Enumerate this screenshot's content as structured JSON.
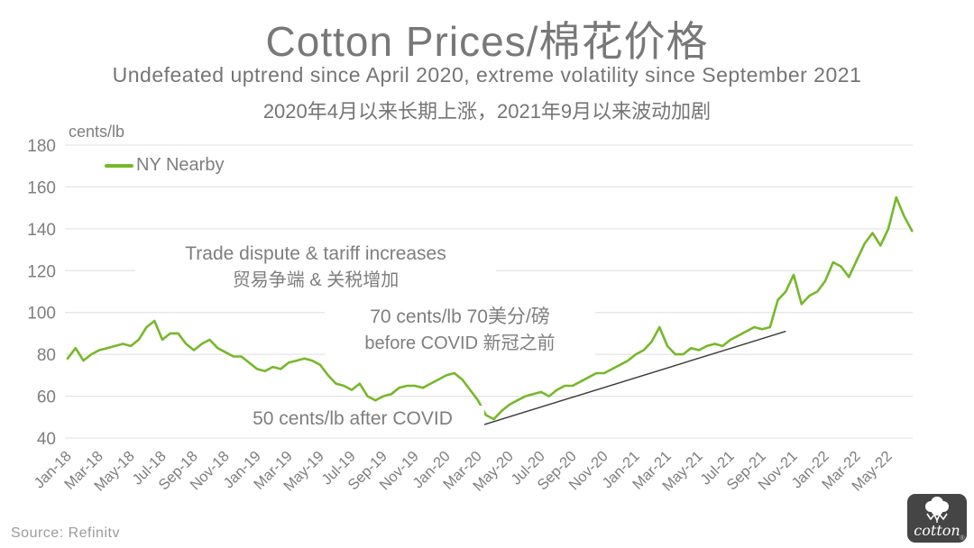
{
  "title": "Cotton Prices/棉花价格",
  "subtitle_en": "Undefeated uptrend since April 2020, extreme volatility since September 2021",
  "subtitle_cn": "2020年4月以来长期上涨，2021年9月以来波动加剧",
  "source": "Source: Refinitv",
  "logo": {
    "brand": "cotton",
    "registered": "®",
    "bg_color": "#454545"
  },
  "colors": {
    "accent_green": "#76b82a",
    "text_gray": "#7e7e7e",
    "grid_gray": "#e6e6e6"
  },
  "chart_data": {
    "type": "line",
    "title": "Cotton Prices/棉花价格",
    "ylabel": "cents/lb",
    "ylim": [
      40,
      180
    ],
    "yticks": [
      180,
      160,
      140,
      120,
      100,
      80,
      60,
      40
    ],
    "grid": true,
    "grid_color": "#e6e6e6",
    "legend_position": "top-left",
    "x_tick_labels": [
      "Jan-18",
      "Mar-18",
      "May-18",
      "Jul-18",
      "Sep-18",
      "Nov-18",
      "Jan-19",
      "Mar-19",
      "May-19",
      "Jul-19",
      "Sep-19",
      "Nov-19",
      "Jan-20",
      "Mar-20",
      "May-20",
      "Jul-20",
      "Sep-20",
      "Nov-20",
      "Jan-21",
      "Mar-21",
      "May-21",
      "Jul-21",
      "Sep-21",
      "Nov-21",
      "Jan-22",
      "Mar-22",
      "May-22"
    ],
    "x_tick_months": [
      0,
      2,
      4,
      6,
      8,
      10,
      12,
      14,
      16,
      18,
      20,
      22,
      24,
      26,
      28,
      30,
      32,
      34,
      36,
      38,
      40,
      42,
      44,
      46,
      48,
      50,
      52
    ],
    "series": [
      {
        "name": "NY Nearby",
        "color": "#76b82a",
        "x_start_label": "Jan-18",
        "x_start_month": 0,
        "x_step_months": 0.5,
        "values": [
          78,
          83,
          77,
          80,
          82,
          83,
          84,
          85,
          84,
          87,
          93,
          96,
          87,
          90,
          90,
          85,
          82,
          85,
          87,
          83,
          81,
          79,
          79,
          76,
          73,
          72,
          74,
          73,
          76,
          77,
          78,
          77,
          75,
          70,
          66,
          65,
          63,
          66,
          60,
          58,
          60,
          61,
          64,
          65,
          65,
          64,
          66,
          68,
          70,
          71,
          68,
          63,
          58,
          51,
          49,
          53,
          56,
          58,
          60,
          61,
          62,
          60,
          63,
          65,
          65,
          67,
          69,
          71,
          71,
          73,
          75,
          77,
          80,
          82,
          86,
          93,
          84,
          80,
          80,
          83,
          82,
          84,
          85,
          84,
          87,
          89,
          91,
          93,
          92,
          93,
          106,
          110,
          118,
          104,
          108,
          110,
          115,
          124,
          122,
          117,
          125,
          133,
          138,
          132,
          140,
          155,
          146,
          139
        ]
      }
    ],
    "trendline": {
      "from_month": 26,
      "from_value": 45.5,
      "to_month": 45.5,
      "to_value": 91,
      "color": "#3a3a3a"
    },
    "annotations": [
      {
        "line1": "Trade dispute & tariff increases",
        "line2": "贸易争端 & 关税增加"
      },
      {
        "line1": "70 cents/lb 70美分/磅",
        "line2": "before COVID 新冠之前"
      },
      {
        "line1": "50 cents/lb after COVID",
        "line2": ""
      }
    ]
  }
}
